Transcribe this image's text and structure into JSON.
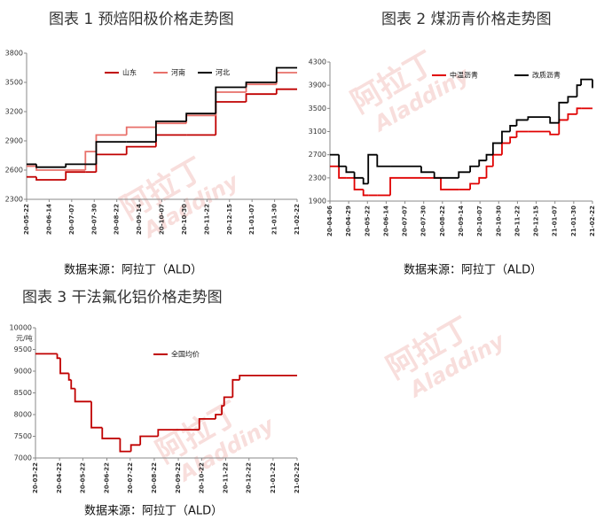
{
  "watermark": {
    "name": "阿拉丁",
    "latin": "Aladdiny"
  },
  "chart_data": [
    {
      "type": "line",
      "step": true,
      "title": "图表 1 预焙阳极价格走势图",
      "source": "数据来源：阿拉丁（ALD）",
      "x": [
        "20-05-22",
        "20-06-01",
        "20-07-01",
        "20-07-21",
        "20-08-01",
        "20-09-01",
        "20-10-01",
        "20-11-01",
        "20-12-01",
        "21-01-01",
        "21-02-01",
        "21-02-22"
      ],
      "series": [
        {
          "name": "山东",
          "color": "#c00000",
          "values": [
            2530,
            2500,
            2580,
            2580,
            2760,
            2840,
            2960,
            2960,
            3300,
            3380,
            3430,
            3430
          ]
        },
        {
          "name": "河南",
          "color": "#e8706a",
          "values": [
            2640,
            2600,
            2600,
            2790,
            2960,
            3040,
            3080,
            3160,
            3400,
            3480,
            3600,
            3600
          ]
        },
        {
          "name": "河北",
          "color": "#000000",
          "values": [
            2660,
            2630,
            2660,
            2660,
            2890,
            2890,
            3100,
            3180,
            3450,
            3500,
            3650,
            3650
          ]
        }
      ],
      "xlim": [
        "20-05-22",
        "21-02-22"
      ],
      "xticks": [
        "20-05-22",
        "20-06-14",
        "20-07-07",
        "20-07-30",
        "20-08-22",
        "20-09-14",
        "20-10-07",
        "20-10-30",
        "20-11-22",
        "20-12-15",
        "21-01-07",
        "21-01-30",
        "21-02-22"
      ],
      "ylim": [
        2300,
        3800
      ],
      "yticks": [
        2300,
        2600,
        2900,
        3200,
        3500,
        3800
      ]
    },
    {
      "type": "line",
      "step": true,
      "title": "图表 2 煤沥青价格走势图",
      "source": "数据来源：阿拉丁（ALD）",
      "x": [
        "20-04-06",
        "20-04-17",
        "20-04-26",
        "20-05-06",
        "20-05-17",
        "20-05-23",
        "20-06-03",
        "20-06-19",
        "20-07-27",
        "20-08-12",
        "20-08-20",
        "20-09-11",
        "20-09-25",
        "20-10-06",
        "20-10-15",
        "20-10-23",
        "20-11-03",
        "20-11-13",
        "20-11-21",
        "20-12-05",
        "21-01-01",
        "21-01-12",
        "21-01-23",
        "21-02-03",
        "21-02-08",
        "21-02-20",
        "21-02-22"
      ],
      "series": [
        {
          "name": "中温沥青",
          "color": "#e00000",
          "values": [
            2500,
            2300,
            2300,
            2100,
            2000,
            2000,
            2000,
            2300,
            2300,
            2300,
            2100,
            2100,
            2200,
            2300,
            2500,
            2700,
            2900,
            3000,
            3100,
            3100,
            3050,
            3300,
            3400,
            3500,
            3500,
            3500,
            3500
          ]
        },
        {
          "name": "改质沥青",
          "color": "#000000",
          "values": [
            2700,
            2500,
            2400,
            2300,
            2200,
            2700,
            2500,
            2500,
            2400,
            2300,
            2300,
            2400,
            2500,
            2600,
            2700,
            2900,
            3100,
            3200,
            3300,
            3350,
            3250,
            3600,
            3700,
            3900,
            4000,
            4000,
            3850
          ]
        }
      ],
      "xlim": [
        "20-04-06",
        "21-02-22"
      ],
      "xticks": [
        "20-04-06",
        "20-04-29",
        "20-05-22",
        "20-06-14",
        "20-07-07",
        "20-07-30",
        "20-08-22",
        "20-09-14",
        "20-10-07",
        "20-10-30",
        "20-11-22",
        "20-12-15",
        "21-01-07",
        "21-01-30",
        "21-02-22"
      ],
      "ylim": [
        1900,
        4300
      ],
      "yticks": [
        1900,
        2300,
        2700,
        3100,
        3500,
        3900,
        4300
      ]
    },
    {
      "type": "line",
      "step": true,
      "title": "图表 3  干法氟化铝价格走势图",
      "source": "数据来源：阿拉丁（ALD）",
      "ylabel": "元/吨",
      "x": [
        "20-03-22",
        "20-04-19",
        "20-04-23",
        "20-05-04",
        "20-05-07",
        "20-05-12",
        "20-06-02",
        "20-06-16",
        "20-07-09",
        "20-07-23",
        "20-08-04",
        "20-08-27",
        "20-10-19",
        "20-11-09",
        "20-11-17",
        "20-11-20",
        "20-12-01",
        "20-12-10",
        "21-02-22"
      ],
      "series": [
        {
          "name": "全国均价",
          "color": "#c00000",
          "values": [
            9400,
            9300,
            8950,
            8800,
            8600,
            8300,
            7700,
            7450,
            7150,
            7300,
            7500,
            7650,
            7900,
            8000,
            8200,
            8400,
            8800,
            8900,
            8900
          ]
        }
      ],
      "xlim": [
        "20-03-22",
        "21-02-22"
      ],
      "xticks": [
        "20-03-22",
        "20-04-22",
        "20-05-22",
        "20-06-22",
        "20-07-22",
        "20-08-22",
        "20-09-22",
        "20-10-22",
        "20-11-22",
        "20-12-22",
        "21-01-22",
        "21-02-22"
      ],
      "ylim": [
        7000,
        10000
      ],
      "yticks": [
        7000,
        7500,
        8000,
        8500,
        9000,
        9500,
        10000
      ]
    }
  ]
}
